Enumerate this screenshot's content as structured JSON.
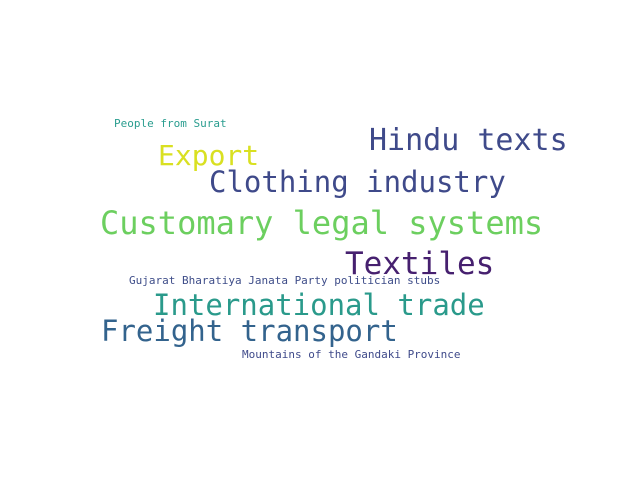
{
  "words": [
    {
      "text": "People from Surat",
      "color": "#2a9d8f"
    },
    {
      "text": "Hindu texts",
      "color": "#3f4a8a"
    },
    {
      "text": "Export",
      "color": "#d9e021"
    },
    {
      "text": "Clothing industry",
      "color": "#3f4a8a"
    },
    {
      "text": "Customary legal systems",
      "color": "#6ccf5f"
    },
    {
      "text": "Textiles",
      "color": "#46206f"
    },
    {
      "text": "Gujarat Bharatiya Janata Party politician stubs",
      "color": "#3e4d89"
    },
    {
      "text": "International trade",
      "color": "#2a9a8b"
    },
    {
      "text": "Freight transport",
      "color": "#33638d"
    },
    {
      "text": "Mountains of the Gandaki Province",
      "color": "#3f4a8a"
    }
  ]
}
